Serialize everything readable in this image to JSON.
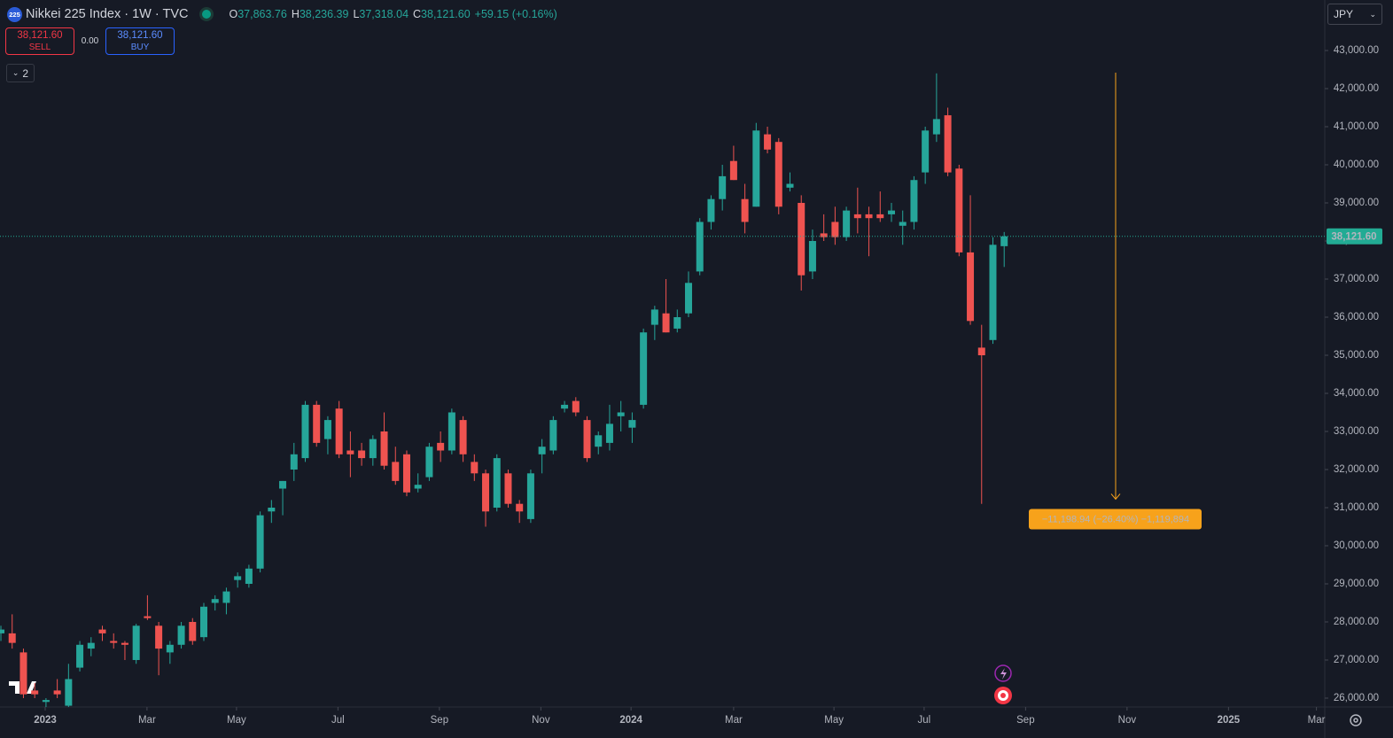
{
  "header": {
    "symbol_badge": "225",
    "title": "Nikkei 225 Index · 1W · TVC",
    "ohlc_labels": [
      "O",
      "H",
      "L",
      "C"
    ],
    "ohlc_values": [
      "37,863.76",
      "38,236.39",
      "37,318.04",
      "38,121.60"
    ],
    "change": "+59.15 (+0.16%)"
  },
  "trade": {
    "sell_price": "38,121.60",
    "sell": "SELL",
    "spread": "0.00",
    "buy_price": "38,121.60",
    "buy": "BUY"
  },
  "indicators_count": "2",
  "currency": "JPY",
  "chart_data": {
    "type": "candlestick",
    "up_color": "#26a69a",
    "down_color": "#ef5350",
    "candles": [
      [
        27700,
        27900,
        27500,
        27800
      ],
      [
        27700,
        28200,
        27300,
        27450
      ],
      [
        27200,
        27300,
        26000,
        26100
      ],
      [
        26200,
        26400,
        26000,
        26100
      ],
      [
        25900,
        26000,
        25700,
        25950
      ],
      [
        26200,
        26500,
        26000,
        26100
      ],
      [
        25800,
        26900,
        25700,
        26500
      ],
      [
        26800,
        27500,
        26700,
        27400
      ],
      [
        27300,
        27600,
        27100,
        27450
      ],
      [
        27800,
        27900,
        27500,
        27700
      ],
      [
        27500,
        27700,
        27300,
        27450
      ],
      [
        27450,
        27500,
        27000,
        27400
      ],
      [
        27000,
        27950,
        26900,
        27900
      ],
      [
        28150,
        28700,
        28050,
        28100
      ],
      [
        27900,
        28000,
        26600,
        27300
      ],
      [
        27200,
        27500,
        26900,
        27400
      ],
      [
        27400,
        28000,
        27300,
        27900
      ],
      [
        28000,
        28100,
        27400,
        27500
      ],
      [
        27600,
        28500,
        27500,
        28400
      ],
      [
        28500,
        28700,
        28300,
        28600
      ],
      [
        28500,
        28900,
        28200,
        28800
      ],
      [
        29100,
        29300,
        28900,
        29200
      ],
      [
        29000,
        29500,
        28900,
        29400
      ],
      [
        29400,
        30900,
        29300,
        30800
      ],
      [
        30900,
        31200,
        30600,
        31000
      ],
      [
        31500,
        31700,
        30800,
        31700
      ],
      [
        32000,
        32700,
        31700,
        32400
      ],
      [
        32300,
        33800,
        32200,
        33700
      ],
      [
        33700,
        33800,
        32600,
        32700
      ],
      [
        32800,
        33400,
        32400,
        33300
      ],
      [
        33600,
        33800,
        32300,
        32400
      ],
      [
        32500,
        33000,
        31800,
        32400
      ],
      [
        32500,
        32700,
        32100,
        32300
      ],
      [
        32300,
        32900,
        32100,
        32800
      ],
      [
        33000,
        33500,
        32000,
        32100
      ],
      [
        32200,
        32600,
        31600,
        31700
      ],
      [
        32400,
        32500,
        31300,
        31400
      ],
      [
        31500,
        31900,
        31400,
        31600
      ],
      [
        31800,
        32700,
        31700,
        32600
      ],
      [
        32700,
        33000,
        32200,
        32500
      ],
      [
        32500,
        33600,
        32400,
        33500
      ],
      [
        33300,
        33400,
        32200,
        32400
      ],
      [
        32200,
        32400,
        31700,
        31900
      ],
      [
        31900,
        32000,
        30500,
        30900
      ],
      [
        31000,
        32400,
        30900,
        32300
      ],
      [
        31900,
        32000,
        31000,
        31100
      ],
      [
        31100,
        31200,
        30600,
        30900
      ],
      [
        30700,
        32000,
        30600,
        31900
      ],
      [
        32400,
        32800,
        31900,
        32600
      ],
      [
        32500,
        33400,
        32400,
        33300
      ],
      [
        33600,
        33800,
        33500,
        33700
      ],
      [
        33800,
        33900,
        33400,
        33500
      ],
      [
        33300,
        33400,
        32200,
        32300
      ],
      [
        32600,
        33000,
        32400,
        32900
      ],
      [
        32700,
        33700,
        32500,
        33200
      ],
      [
        33400,
        33800,
        33000,
        33500
      ],
      [
        33100,
        33500,
        32700,
        33300
      ],
      [
        33700,
        35700,
        33600,
        35600
      ],
      [
        35800,
        36300,
        35400,
        36200
      ],
      [
        36100,
        37000,
        35600,
        35600
      ],
      [
        35700,
        36200,
        35600,
        36000
      ],
      [
        36100,
        37200,
        36000,
        36900
      ],
      [
        37200,
        38600,
        37100,
        38500
      ],
      [
        38500,
        39200,
        38300,
        39100
      ],
      [
        39100,
        40000,
        38800,
        39700
      ],
      [
        40100,
        40500,
        39600,
        39600
      ],
      [
        39100,
        39500,
        38200,
        38500
      ],
      [
        38900,
        41100,
        38900,
        40900
      ],
      [
        40800,
        41000,
        40300,
        40400
      ],
      [
        40600,
        40700,
        38700,
        38900
      ],
      [
        39400,
        39800,
        39300,
        39500
      ],
      [
        39000,
        39200,
        36700,
        37100
      ],
      [
        37200,
        38300,
        37000,
        38000
      ],
      [
        38200,
        38700,
        38000,
        38100
      ],
      [
        38500,
        38900,
        37900,
        38100
      ],
      [
        38100,
        38900,
        38000,
        38800
      ],
      [
        38700,
        39400,
        38200,
        38600
      ],
      [
        38700,
        38900,
        37600,
        38600
      ],
      [
        38700,
        39300,
        38500,
        38600
      ],
      [
        38700,
        39000,
        38500,
        38800
      ],
      [
        38400,
        38800,
        37900,
        38500
      ],
      [
        38500,
        39700,
        38300,
        39600
      ],
      [
        39800,
        41000,
        39500,
        40900
      ],
      [
        40800,
        42400,
        40600,
        41200
      ],
      [
        41300,
        41500,
        39700,
        39800
      ],
      [
        39900,
        40000,
        37600,
        37700
      ],
      [
        37700,
        39200,
        35800,
        35900
      ],
      [
        35200,
        35800,
        31100,
        35000
      ],
      [
        35400,
        38100,
        35300,
        37900
      ],
      [
        37863.76,
        38236.39,
        37318.04,
        38121.6
      ]
    ],
    "xlim": [
      -0.08,
      117.44
    ],
    "xticks": [
      {
        "value": 3.93,
        "label": "2023"
      },
      {
        "value": 12.96,
        "label": "Mar"
      },
      {
        "value": 20.9,
        "label": "May"
      },
      {
        "value": 29.9,
        "label": "Jul"
      },
      {
        "value": 38.9,
        "label": "Sep"
      },
      {
        "value": 47.9,
        "label": "Nov"
      },
      {
        "value": 55.9,
        "label": "2024"
      },
      {
        "value": 65.0,
        "label": "Mar"
      },
      {
        "value": 73.9,
        "label": "May"
      },
      {
        "value": 81.9,
        "label": "Jul"
      },
      {
        "value": 90.9,
        "label": "Sep"
      },
      {
        "value": 99.9,
        "label": "Nov"
      },
      {
        "value": 108.9,
        "label": "2025"
      },
      {
        "value": 116.7,
        "label": "Mar"
      }
    ],
    "ylim": [
      25767,
      44326
    ],
    "yticks": [
      {
        "value": 26000,
        "label": "26,000.00"
      },
      {
        "value": 27000,
        "label": "27,000.00"
      },
      {
        "value": 28000,
        "label": "28,000.00"
      },
      {
        "value": 29000,
        "label": "29,000.00"
      },
      {
        "value": 30000,
        "label": "30,000.00"
      },
      {
        "value": 31000,
        "label": "31,000.00"
      },
      {
        "value": 32000,
        "label": "32,000.00"
      },
      {
        "value": 33000,
        "label": "33,000.00"
      },
      {
        "value": 34000,
        "label": "34,000.00"
      },
      {
        "value": 35000,
        "label": "35,000.00"
      },
      {
        "value": 36000,
        "label": "36,000.00"
      },
      {
        "value": 37000,
        "label": "37,000.00"
      },
      {
        "value": 38000,
        "label": "38,000.00"
      },
      {
        "value": 39000,
        "label": "39,000.00"
      },
      {
        "value": 40000,
        "label": "40,000.00"
      },
      {
        "value": 41000,
        "label": "41,000.00"
      },
      {
        "value": 42000,
        "label": "42,000.00"
      },
      {
        "value": 43000,
        "label": "43,000.00"
      }
    ],
    "last_price": {
      "value": 38121.6,
      "label": "38,121.60"
    },
    "last_price_color": "#22ab94",
    "measure": {
      "from": 42420,
      "to": 31221.06,
      "label": "−11,198.94 (−26.40%) −1,119,894",
      "color": "#f7a21b"
    }
  }
}
